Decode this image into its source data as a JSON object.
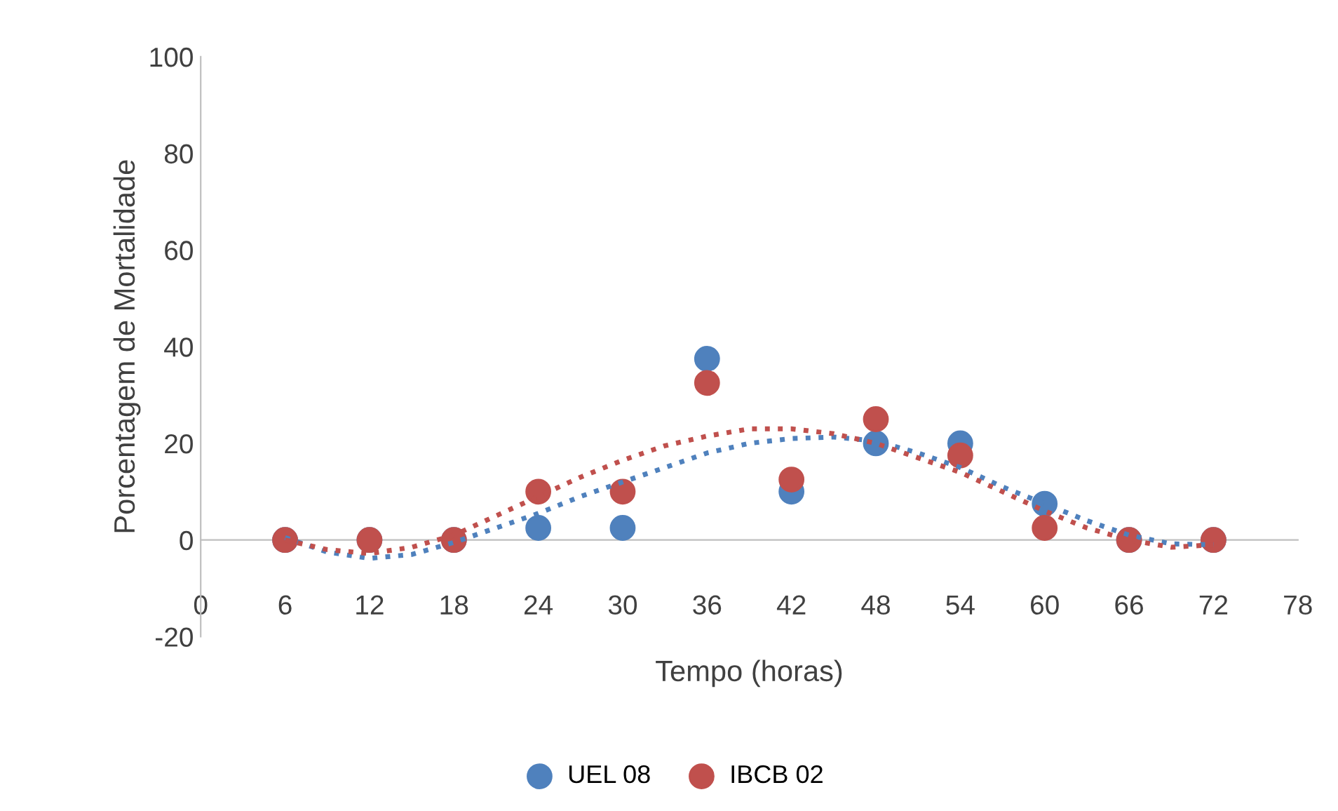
{
  "chart_data": {
    "type": "scatter",
    "xlabel": "Tempo (horas)",
    "ylabel": "Porcentagem de Mortalidade",
    "x": [
      6,
      12,
      18,
      24,
      30,
      36,
      42,
      48,
      54,
      60,
      66,
      72
    ],
    "series": [
      {
        "name": "UEL 08",
        "color": "#4f81bd",
        "marker": "circle",
        "values": [
          0,
          0,
          0,
          2.5,
          2.5,
          37.5,
          10,
          20,
          20,
          7.5,
          0,
          0
        ]
      },
      {
        "name": "IBCB 02",
        "color": "#c0504d",
        "marker": "circle",
        "values": [
          0,
          0,
          0,
          10,
          10,
          32.5,
          12.5,
          25,
          17.5,
          2.5,
          0,
          0
        ]
      },
      {
        "type": "line",
        "color": "#4f81bd",
        "line_style": "dotted",
        "marker": "none",
        "x": [
          6,
          9,
          12,
          15,
          18,
          21,
          24,
          27,
          30,
          33,
          36,
          39,
          42,
          45,
          48,
          51,
          54,
          57,
          60,
          63,
          66,
          69,
          72
        ],
        "values": [
          0.5,
          -2.5,
          -3.8,
          -3,
          -0.5,
          2.5,
          5.5,
          9,
          12,
          15,
          18,
          20,
          21,
          21.3,
          20.5,
          18,
          15,
          11,
          7.5,
          4,
          1,
          -0.8,
          -1
        ]
      },
      {
        "type": "line",
        "color": "#c0504d",
        "line_style": "dotted",
        "marker": "none",
        "x": [
          6,
          9,
          12,
          15,
          18,
          21,
          24,
          27,
          30,
          33,
          36,
          39,
          42,
          45,
          48,
          51,
          54,
          57,
          60,
          63,
          66,
          69,
          72
        ],
        "values": [
          0,
          -2,
          -2.8,
          -1.5,
          1,
          5,
          9,
          13,
          16.5,
          19.5,
          21.5,
          23,
          23,
          22,
          20,
          17,
          14,
          10,
          6,
          2.5,
          0,
          -1.5,
          -1
        ]
      }
    ],
    "xlim": [
      0,
      78
    ],
    "xticks": [
      0,
      6,
      12,
      18,
      24,
      30,
      36,
      42,
      48,
      54,
      60,
      66,
      72,
      78
    ],
    "ylim": [
      -20,
      100
    ],
    "yticks": [
      -20,
      0,
      20,
      40,
      60,
      80,
      100
    ],
    "grid": false,
    "legend": "bottom"
  }
}
